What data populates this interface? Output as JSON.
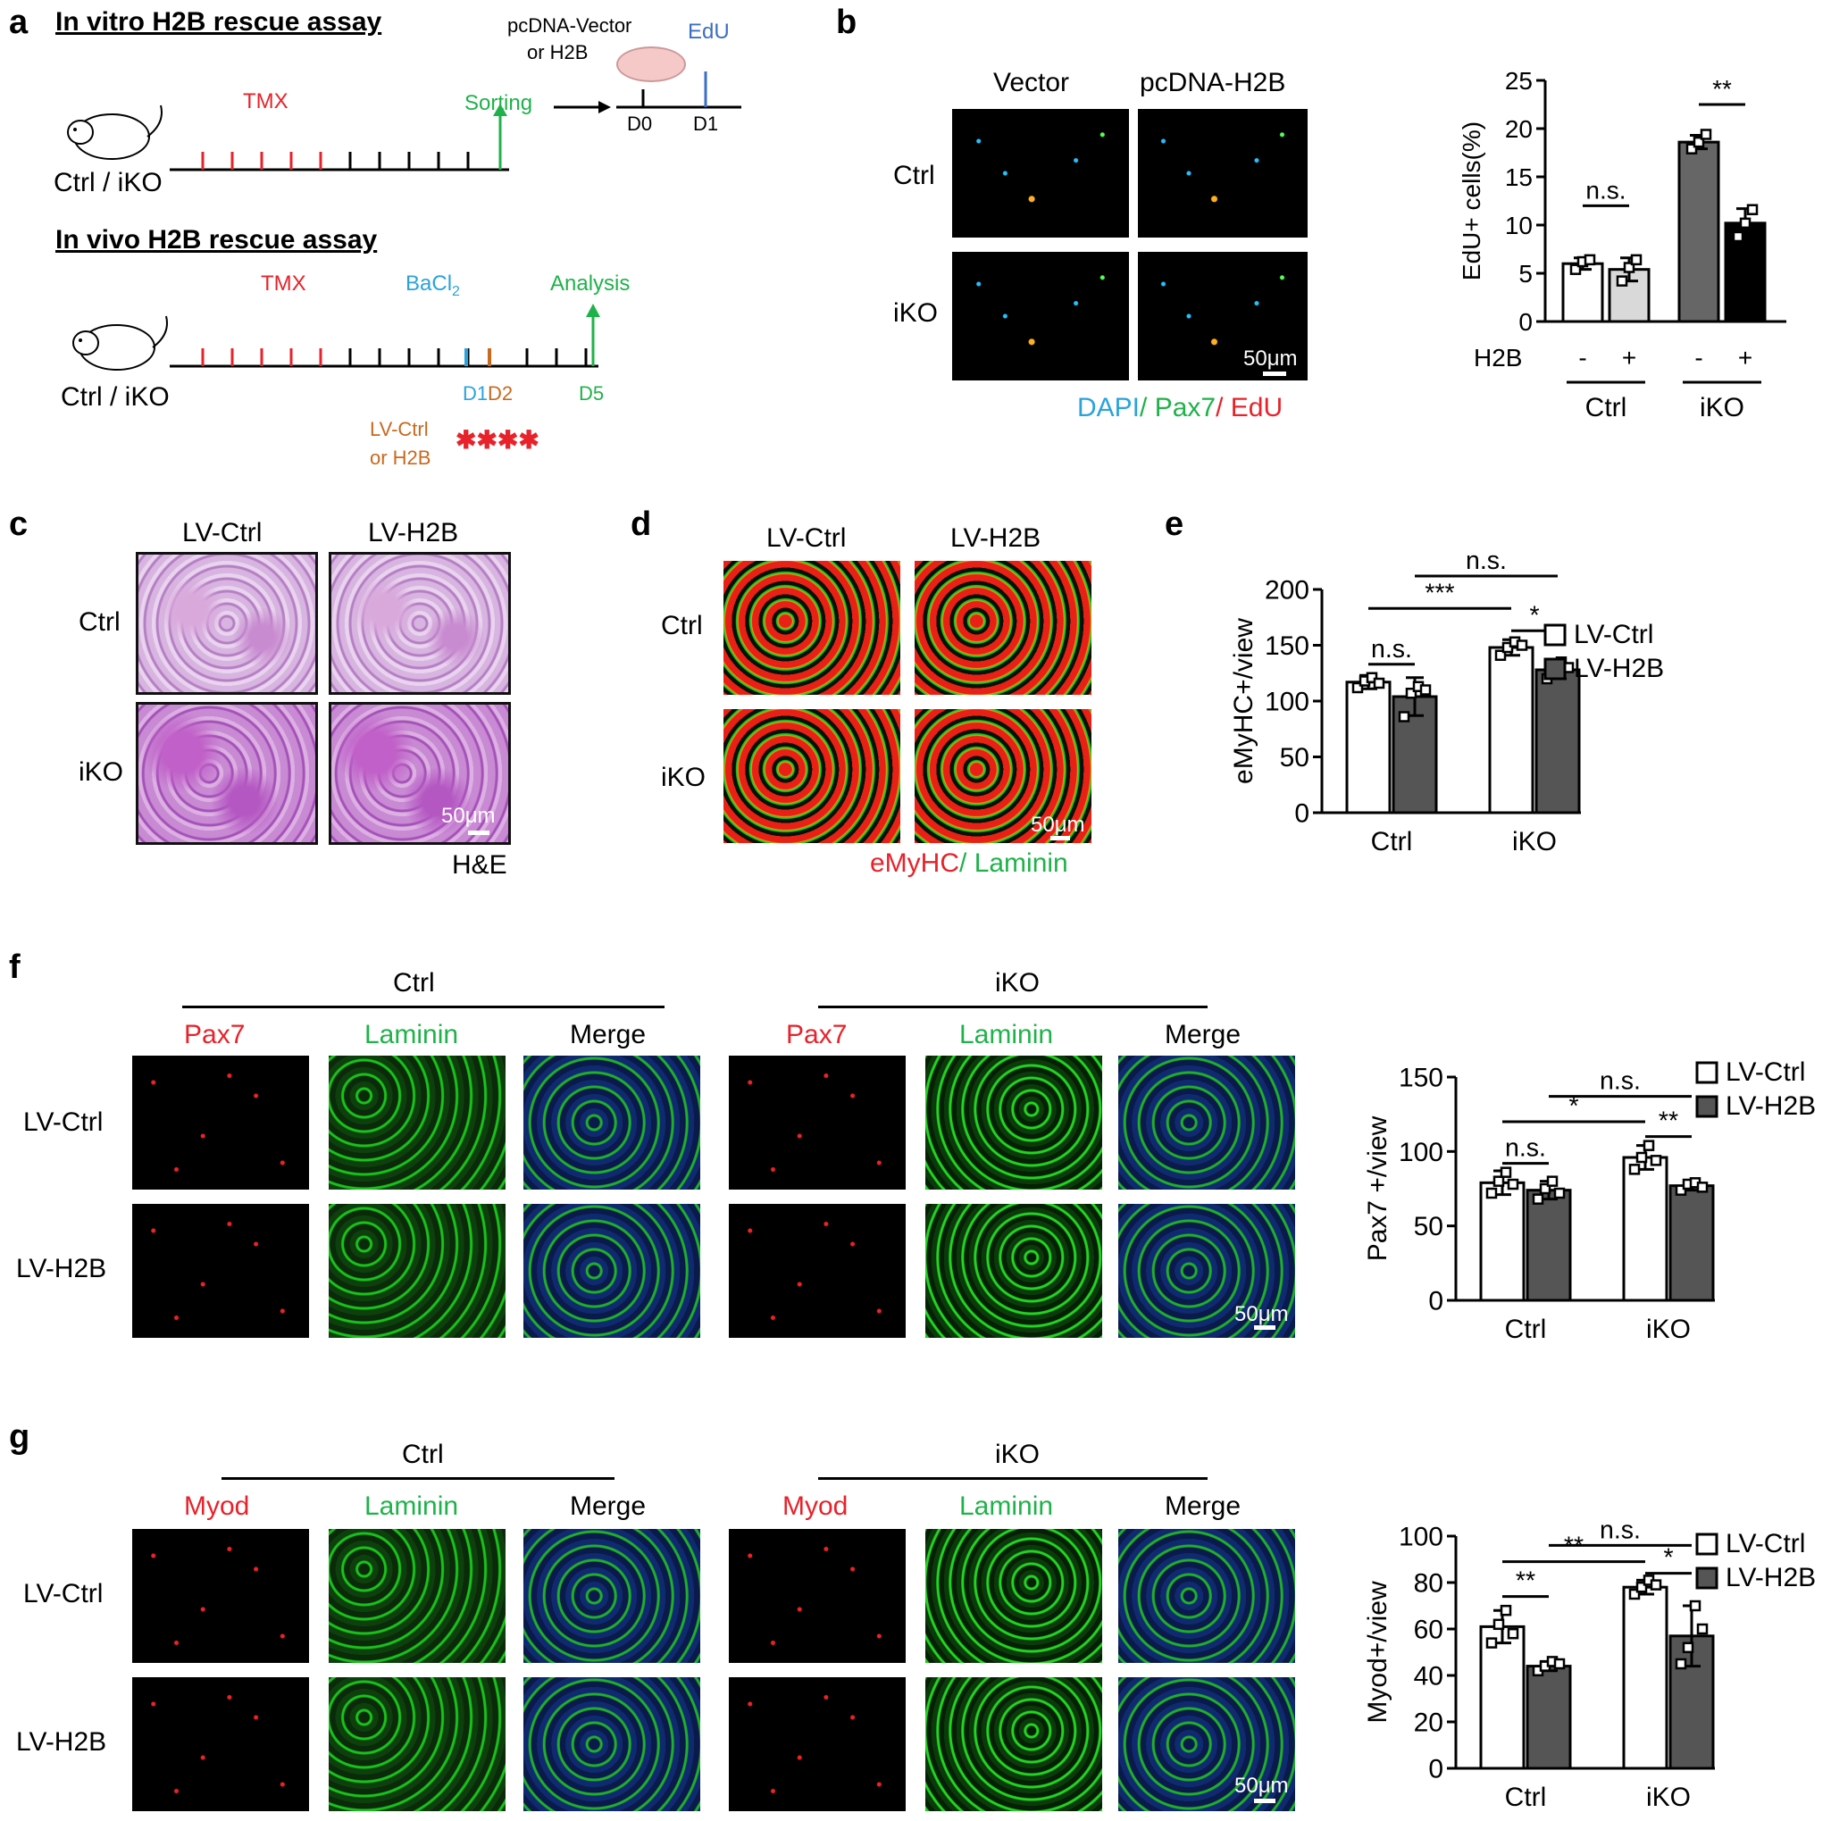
{
  "panels": {
    "a": {
      "label": "a",
      "invitro_title": "In vitro H2B rescue assay",
      "invivo_title": "In vivo H2B rescue assay",
      "tmx": "TMX",
      "sorting": "Sorting",
      "vector_or_h2b": "pcDNA-Vector\nor H2B",
      "vector_line1": "pcDNA-Vector",
      "vector_line2": "or H2B",
      "edu": "EdU",
      "d0": "D0",
      "d1": "D1",
      "mouse_label": "Ctrl / iKO",
      "bacl2": "BaCl",
      "bacl2_sub": "2",
      "analysis": "Analysis",
      "d1_invivo": "D1",
      "d2": "D2",
      "d5": "D5",
      "lv_line1": "LV-Ctrl",
      "lv_line2": "or H2B"
    },
    "b": {
      "label": "b",
      "col_vector": "Vector",
      "col_h2b": "pcDNA-H2B",
      "row_ctrl": "Ctrl",
      "row_iko": "iKO",
      "scale": "50μm",
      "legend_dapi": "DAPI",
      "legend_pax7": "Pax7",
      "legend_edu": "EdU",
      "legend_sep": "/ "
    },
    "c": {
      "label": "c",
      "col1": "LV-Ctrl",
      "col2": "LV-H2B",
      "row_ctrl": "Ctrl",
      "row_iko": "iKO",
      "scale": "50μm",
      "stain": "H&E"
    },
    "d": {
      "label": "d",
      "col1": "LV-Ctrl",
      "col2": "LV-H2B",
      "row_ctrl": "Ctrl",
      "row_iko": "iKO",
      "scale": "50μm",
      "legend_emyhc": "eMyHC",
      "legend_laminin": "Laminin",
      "legend_sep": "/ "
    },
    "e": {
      "label": "e"
    },
    "f": {
      "label": "f",
      "group_ctrl": "Ctrl",
      "group_iko": "iKO",
      "col_pax7": "Pax7",
      "col_laminin": "Laminin",
      "col_merge": "Merge",
      "row1": "LV-Ctrl",
      "row2": "LV-H2B",
      "scale": "50μm"
    },
    "g": {
      "label": "g",
      "group_ctrl": "Ctrl",
      "group_iko": "iKO",
      "col_myod": "Myod",
      "col_laminin": "Laminin",
      "col_merge": "Merge",
      "row1": "LV-Ctrl",
      "row2": "LV-H2B",
      "scale": "50μm"
    }
  },
  "colors": {
    "red": "#e8222a",
    "green": "#1fb24a",
    "blue": "#2aa3dc",
    "orange": "#c8691e",
    "bar_dark": "#555555",
    "bar_light": "#d9d9d9",
    "bar_black": "#000000"
  },
  "chart_data": [
    {
      "panel": "b",
      "type": "bar",
      "ylabel": "EdU+ cells(%)",
      "ylim": [
        0,
        25
      ],
      "yticks": [
        0,
        5,
        10,
        15,
        20,
        25
      ],
      "x_row_label": "H2B",
      "bars": [
        {
          "group": "Ctrl",
          "h2b": "-",
          "value": 6.0,
          "err": 0.6,
          "fill": "#ffffff",
          "points": [
            5.4,
            6.2,
            6.4
          ]
        },
        {
          "group": "Ctrl",
          "h2b": "+",
          "value": 5.4,
          "err": 1.2,
          "fill": "#d9d9d9",
          "points": [
            4.2,
            5.6,
            6.4
          ]
        },
        {
          "group": "iKO",
          "h2b": "-",
          "value": 18.6,
          "err": 0.7,
          "fill": "#666666",
          "points": [
            17.9,
            18.6,
            19.4
          ]
        },
        {
          "group": "iKO",
          "h2b": "+",
          "value": 10.2,
          "err": 1.5,
          "fill": "#000000",
          "points": [
            8.8,
            10.2,
            11.6
          ]
        }
      ],
      "groups": [
        "Ctrl",
        "iKO"
      ],
      "annotations": [
        "n.s.",
        "**"
      ]
    },
    {
      "panel": "e",
      "type": "bar",
      "ylabel": "eMyHC+/view",
      "ylim": [
        0,
        200
      ],
      "yticks": [
        0,
        50,
        100,
        150,
        200
      ],
      "categories": [
        "Ctrl",
        "iKO"
      ],
      "series": [
        {
          "name": "LV-Ctrl",
          "fill": "#ffffff",
          "values": [
            117,
            148
          ],
          "err": [
            6,
            7
          ],
          "points": [
            [
              112,
              118,
              121,
              116
            ],
            [
              141,
              148,
              153,
              150
            ]
          ]
        },
        {
          "name": "LV-H2B",
          "fill": "#555555",
          "values": [
            104,
            128
          ],
          "err": [
            17,
            8
          ],
          "points": [
            [
              86,
              107,
              113,
              110
            ],
            [
              120,
              127,
              135,
              130
            ]
          ]
        }
      ],
      "annotations": [
        "n.s.",
        "***",
        "n.s.",
        "*"
      ]
    },
    {
      "panel": "f",
      "type": "bar",
      "ylabel": "Pax7 +/view",
      "ylim": [
        0,
        150
      ],
      "yticks": [
        0,
        50,
        100,
        150
      ],
      "categories": [
        "Ctrl",
        "iKO"
      ],
      "series": [
        {
          "name": "LV-Ctrl",
          "fill": "#ffffff",
          "values": [
            79,
            96
          ],
          "err": [
            8,
            8
          ],
          "points": [
            [
              72,
              80,
              86,
              78
            ],
            [
              88,
              96,
              104,
              94
            ]
          ]
        },
        {
          "name": "LV-H2B",
          "fill": "#555555",
          "values": [
            74,
            77
          ],
          "err": [
            6,
            3
          ],
          "points": [
            [
              68,
              75,
              80,
              72
            ],
            [
              74,
              78,
              79,
              76
            ]
          ]
        }
      ],
      "annotations": [
        "n.s.",
        "*",
        "n.s.",
        "**"
      ]
    },
    {
      "panel": "g",
      "type": "bar",
      "ylabel": "Myod+/view",
      "ylim": [
        0,
        100
      ],
      "yticks": [
        0,
        20,
        40,
        60,
        80,
        100
      ],
      "categories": [
        "Ctrl",
        "iKO"
      ],
      "series": [
        {
          "name": "LV-Ctrl",
          "fill": "#ffffff",
          "values": [
            61,
            78
          ],
          "err": [
            7,
            3
          ],
          "points": [
            [
              54,
              62,
              68,
              58
            ],
            [
              75,
              78,
              81,
              79
            ]
          ]
        },
        {
          "name": "LV-H2B",
          "fill": "#555555",
          "values": [
            44,
            57
          ],
          "err": [
            2,
            13
          ],
          "points": [
            [
              42,
              44,
              46,
              45
            ],
            [
              45,
              52,
              70,
              60
            ]
          ]
        }
      ],
      "annotations": [
        "**",
        "**",
        "n.s.",
        "*"
      ]
    }
  ]
}
